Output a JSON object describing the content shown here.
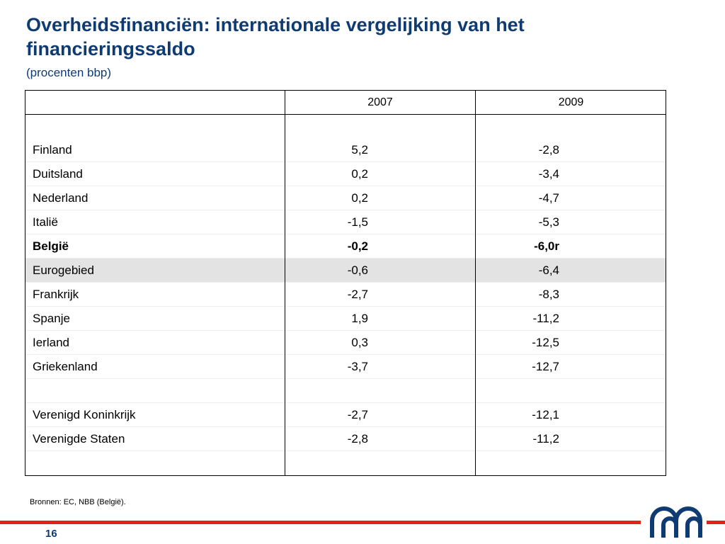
{
  "slide": {
    "title": "Overheidsfinanciën: internationale vergelijking van het financieringssaldo",
    "subtitle": "(procenten bbp)",
    "source": "Bronnen: EC, NBB (België).",
    "page_number": "16"
  },
  "table": {
    "columns": [
      "",
      "2007",
      "2009"
    ],
    "rows": [
      {
        "name": "Finland",
        "v2007": "5,2",
        "v2009": "-2,8",
        "bold": false,
        "shaded": false
      },
      {
        "name": "Duitsland",
        "v2007": "0,2",
        "v2009": "-3,4",
        "bold": false,
        "shaded": false
      },
      {
        "name": "Nederland",
        "v2007": "0,2",
        "v2009": "-4,7",
        "bold": false,
        "shaded": false
      },
      {
        "name": "Italië",
        "v2007": "-1,5",
        "v2009": "-5,3",
        "bold": false,
        "shaded": false
      },
      {
        "name": "België",
        "v2007": "-0,2",
        "v2009": "-6,0r",
        "bold": true,
        "shaded": false
      },
      {
        "name": "Eurogebied",
        "v2007": "-0,6",
        "v2009": "-6,4",
        "bold": false,
        "shaded": true
      },
      {
        "name": "Frankrijk",
        "v2007": "-2,7",
        "v2009": "-8,3",
        "bold": false,
        "shaded": false
      },
      {
        "name": "Spanje",
        "v2007": "1,9",
        "v2009": "-11,2",
        "bold": false,
        "shaded": false
      },
      {
        "name": "Ierland",
        "v2007": "0,3",
        "v2009": "-12,5",
        "bold": false,
        "shaded": false
      },
      {
        "name": "Griekenland",
        "v2007": "-3,7",
        "v2009": "-12,7",
        "bold": false,
        "shaded": false
      },
      {
        "name": "",
        "v2007": "",
        "v2009": "",
        "bold": false,
        "shaded": false
      },
      {
        "name": "Verenigd Koninkrijk",
        "v2007": "-2,7",
        "v2009": "-12,1",
        "bold": false,
        "shaded": false
      },
      {
        "name": "Verenigde Staten",
        "v2007": "-2,8",
        "v2009": "-11,2",
        "bold": false,
        "shaded": false
      }
    ]
  },
  "colors": {
    "title": "#0f3b73",
    "accent_bar": "#e2231a",
    "highlight_row": "#e3e3e3"
  },
  "icons": {
    "logo": "nbb-logo-icon"
  }
}
